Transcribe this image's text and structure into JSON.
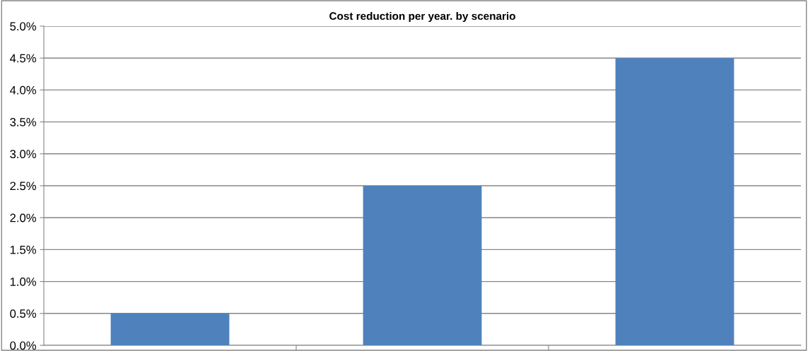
{
  "chart_data": {
    "type": "bar",
    "title": "Cost reduction per year. by scenario",
    "categories": [
      null,
      null,
      null
    ],
    "values": [
      0.5,
      2.5,
      4.5
    ],
    "color": "#4f81bd",
    "ylim": [
      0,
      5
    ],
    "yticks": [
      {
        "value": 0,
        "label": "0.0%"
      },
      {
        "value": 0.5,
        "label": "0.5%"
      },
      {
        "value": 1,
        "label": "1.0%"
      },
      {
        "value": 1.5,
        "label": "1.5%"
      },
      {
        "value": 2,
        "label": "2.0%"
      },
      {
        "value": 2.5,
        "label": "2.5%"
      },
      {
        "value": 3,
        "label": "3.0%"
      },
      {
        "value": 3.5,
        "label": "3.5%"
      },
      {
        "value": 4,
        "label": "4.0%"
      },
      {
        "value": 4.5,
        "label": "4.5%"
      },
      {
        "value": 5,
        "label": "5.0%"
      }
    ],
    "grid": "y",
    "legend": false
  }
}
